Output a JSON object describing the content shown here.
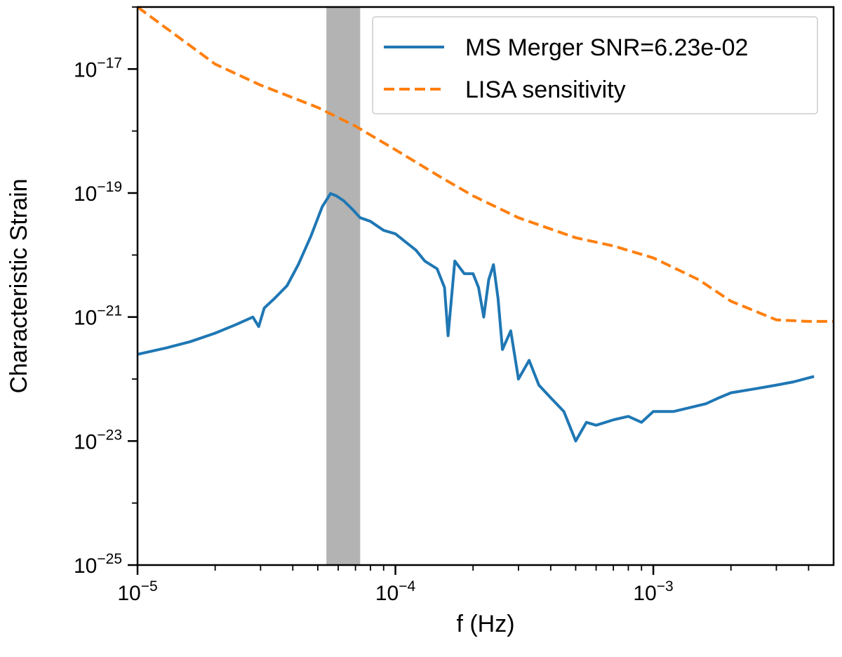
{
  "chart_data": {
    "type": "line",
    "title": "",
    "xlabel": "f (Hz)",
    "ylabel": "Characteristic Strain",
    "xscale": "log",
    "yscale": "log",
    "xlim": [
      1e-05,
      0.005
    ],
    "ylim": [
      1e-25,
      1e-16
    ],
    "grid": false,
    "legend_position": "top-right",
    "x_ticks": [
      {
        "value": 1e-05,
        "base": "10",
        "exp": "−5"
      },
      {
        "value": 0.0001,
        "base": "10",
        "exp": "−4"
      },
      {
        "value": 0.001,
        "base": "10",
        "exp": "−3"
      }
    ],
    "y_ticks": [
      {
        "value": 1e-25,
        "base": "10",
        "exp": "−25"
      },
      {
        "value": 1e-23,
        "base": "10",
        "exp": "−23"
      },
      {
        "value": 1e-21,
        "base": "10",
        "exp": "−21"
      },
      {
        "value": 1e-19,
        "base": "10",
        "exp": "−19"
      },
      {
        "value": 1e-17,
        "base": "10",
        "exp": "−17"
      }
    ],
    "shaded_band": {
      "x_start": 5.4e-05,
      "x_end": 7.3e-05,
      "color": "#b3b3b3"
    },
    "series": [
      {
        "name": "MS Merger SNR=6.23e-02",
        "color": "#1f77b4",
        "style": "solid",
        "x": [
          1e-05,
          1.3e-05,
          1.6e-05,
          2e-05,
          2.4e-05,
          2.8e-05,
          2.95e-05,
          3.1e-05,
          3.4e-05,
          3.8e-05,
          4.2e-05,
          4.7e-05,
          5.2e-05,
          5.6e-05,
          5.9e-05,
          6.3e-05,
          6.8e-05,
          7.3e-05,
          8e-05,
          9e-05,
          0.0001,
          0.00011,
          0.00012,
          0.00013,
          0.000145,
          0.000155,
          0.00016,
          0.00017,
          0.000185,
          0.0002,
          0.00021,
          0.00022,
          0.00023,
          0.00024,
          0.00025,
          0.00026,
          0.00028,
          0.0003,
          0.00033,
          0.00036,
          0.0004,
          0.00045,
          0.0005,
          0.00055,
          0.0006,
          0.0007,
          0.0008,
          0.0009,
          0.001,
          0.0012,
          0.0014,
          0.0016,
          0.0018,
          0.002,
          0.0025,
          0.003,
          0.0035,
          0.0042
        ],
        "y": [
          2.5e-22,
          3.2e-22,
          4e-22,
          5.5e-22,
          7.5e-22,
          1e-21,
          7e-22,
          1.4e-21,
          2e-21,
          3.2e-21,
          7e-21,
          2e-20,
          6e-20,
          9.8e-20,
          9e-20,
          7.5e-20,
          5.5e-20,
          4e-20,
          3.5e-20,
          2.5e-20,
          2.2e-20,
          1.6e-20,
          1.2e-20,
          8e-21,
          6e-21,
          3e-21,
          5e-22,
          8e-21,
          5e-21,
          5e-21,
          3e-21,
          1e-21,
          4e-21,
          7e-21,
          2e-21,
          3e-22,
          6e-22,
          1e-22,
          2e-22,
          8e-23,
          5e-23,
          3e-23,
          1e-23,
          2e-23,
          1.8e-23,
          2.2e-23,
          2.5e-23,
          2e-23,
          3e-23,
          3e-23,
          3.5e-23,
          4e-23,
          5e-23,
          6e-23,
          7e-23,
          8e-23,
          9e-23,
          1.1e-22
        ]
      },
      {
        "name": "LISA sensitivity",
        "color": "#ff7f0e",
        "style": "dashed",
        "x": [
          1e-05,
          2e-05,
          3e-05,
          5e-05,
          7e-05,
          0.0001,
          0.00015,
          0.0002,
          0.0003,
          0.0005,
          0.0007,
          0.001,
          0.0015,
          0.002,
          0.003,
          0.004,
          0.005
        ],
        "y": [
          1e-16,
          1.2e-17,
          5.5e-18,
          2.4e-18,
          1.2e-18,
          5e-19,
          1.8e-19,
          9e-20,
          4e-20,
          1.9e-20,
          1.4e-20,
          9e-21,
          4e-21,
          1.8e-21,
          9e-22,
          8.5e-22,
          8.5e-22
        ]
      }
    ]
  }
}
